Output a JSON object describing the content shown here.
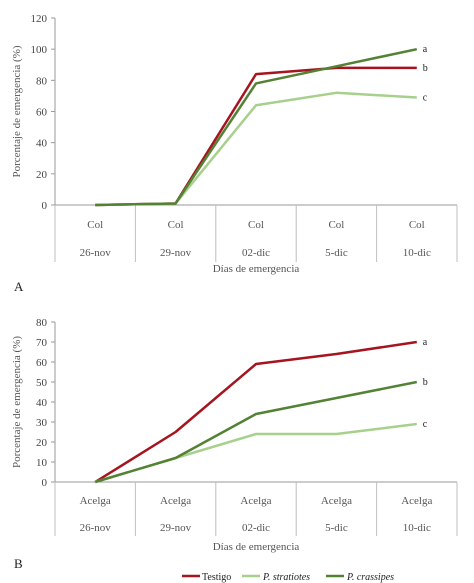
{
  "colors": {
    "testigo": "#a4151f",
    "stratiotes": "#a8d08d",
    "crassipes": "#548235",
    "axis": "#9a9a9a",
    "grid": "#bfbfbf"
  },
  "legend": {
    "testigo": "Testigo",
    "stratiotes": "P. stratiotes",
    "crassipes": "P. crassipes"
  },
  "chart_data": [
    {
      "type": "line",
      "panel": "A",
      "ylabel": "Porcentaje de emergencia (%)",
      "xlabel": "Días de emergencia",
      "ylim": [
        0,
        120
      ],
      "yticks": [
        0,
        20,
        40,
        60,
        80,
        100,
        120
      ],
      "crop_row": [
        "Col",
        "Col",
        "Col",
        "Col",
        "Col"
      ],
      "categories": [
        "26-nov",
        "29-nov",
        "02-dic",
        "5-dic",
        "10-dic"
      ],
      "series": [
        {
          "name": "Testigo",
          "key": "testigo",
          "values": [
            0,
            1,
            84,
            88,
            88
          ],
          "end_label": "b"
        },
        {
          "name": "P. stratiotes",
          "key": "stratiotes",
          "values": [
            0,
            1,
            64,
            72,
            69
          ],
          "end_label": "c"
        },
        {
          "name": "P. crassipes",
          "key": "crassipes",
          "values": [
            0,
            1,
            78,
            89,
            100
          ],
          "end_label": "a"
        }
      ]
    },
    {
      "type": "line",
      "panel": "B",
      "ylabel": "Porcentaje de emergencia (%)",
      "xlabel": "Días de emergencia",
      "ylim": [
        0,
        80
      ],
      "yticks": [
        0,
        10,
        20,
        30,
        40,
        50,
        60,
        70,
        80
      ],
      "crop_row": [
        "Acelga",
        "Acelga",
        "Acelga",
        "Acelga",
        "Acelga"
      ],
      "categories": [
        "26-nov",
        "29-nov",
        "02-dic",
        "5-dic",
        "10-dic"
      ],
      "series": [
        {
          "name": "Testigo",
          "key": "testigo",
          "values": [
            0,
            25,
            59,
            64,
            70
          ],
          "end_label": "a"
        },
        {
          "name": "P. stratiotes",
          "key": "stratiotes",
          "values": [
            0,
            12,
            24,
            24,
            29
          ],
          "end_label": "c"
        },
        {
          "name": "P. crassipes",
          "key": "crassipes",
          "values": [
            0,
            12,
            34,
            42,
            50
          ],
          "end_label": "b"
        }
      ]
    }
  ]
}
